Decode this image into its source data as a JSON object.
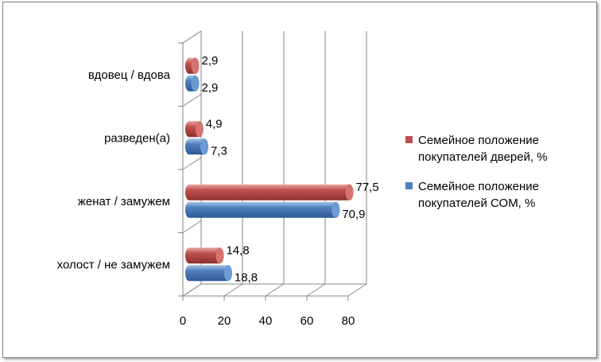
{
  "chart_data": {
    "type": "bar",
    "orientation": "horizontal",
    "style": "3d-cylinder",
    "categories": [
      "холост / не замужем",
      "женат / замужем",
      "разведен(а)",
      "вдовец / вдова"
    ],
    "series": [
      {
        "name": "Семейное положение покупателей СОМ, %",
        "legend_lines": [
          "Семейное положение",
          "покупателей СОМ, %"
        ],
        "values": [
          18.8,
          70.9,
          7.3,
          2.9
        ],
        "labels": [
          "18,8",
          "70,9",
          "7,3",
          "2,9"
        ],
        "color": "#4f81bd"
      },
      {
        "name": "Семейное положение покупателей дверей, %",
        "legend_lines": [
          "Семейное положение",
          "покупателей дверей, %"
        ],
        "values": [
          14.8,
          77.5,
          4.9,
          2.9
        ],
        "labels": [
          "14,8",
          "77,5",
          "4,9",
          "2,9"
        ],
        "color": "#c0504d"
      }
    ],
    "xlim": [
      0,
      80
    ],
    "xticks": [
      0,
      20,
      40,
      60,
      80
    ],
    "xtick_labels": [
      "0",
      "20",
      "40",
      "60",
      "80"
    ],
    "grid": true,
    "legend_position": "right",
    "title": "",
    "xlabel": "",
    "ylabel": ""
  }
}
